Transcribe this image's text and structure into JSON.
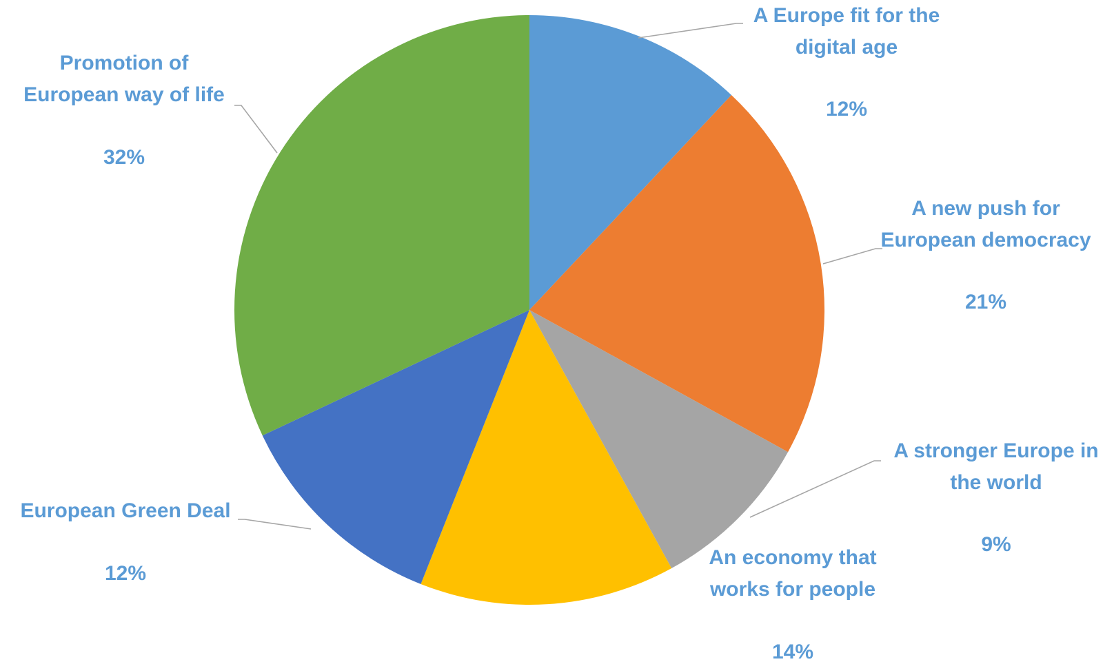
{
  "chart_data": {
    "type": "pie",
    "title": "",
    "label_color": "#5b9bd5",
    "slices": [
      {
        "label": [
          "A Europe fit for the",
          "digital age"
        ],
        "value": 12,
        "value_label": "12%",
        "color": "#5b9bd5"
      },
      {
        "label": [
          "A new push for",
          "European democracy"
        ],
        "value": 21,
        "value_label": "21%",
        "color": "#ed7d31"
      },
      {
        "label": [
          "A stronger Europe in",
          "the world"
        ],
        "value": 9,
        "value_label": "9%",
        "color": "#a5a5a5"
      },
      {
        "label": [
          "An economy that",
          "works for people"
        ],
        "value": 14,
        "value_label": "14%",
        "color": "#ffc000"
      },
      {
        "label": [
          "European Green Deal"
        ],
        "value": 12,
        "value_label": "12%",
        "color": "#4472c4"
      },
      {
        "label": [
          "Promotion of",
          "European way of life"
        ],
        "value": 32,
        "value_label": "32%",
        "color": "#70ad47"
      }
    ]
  }
}
